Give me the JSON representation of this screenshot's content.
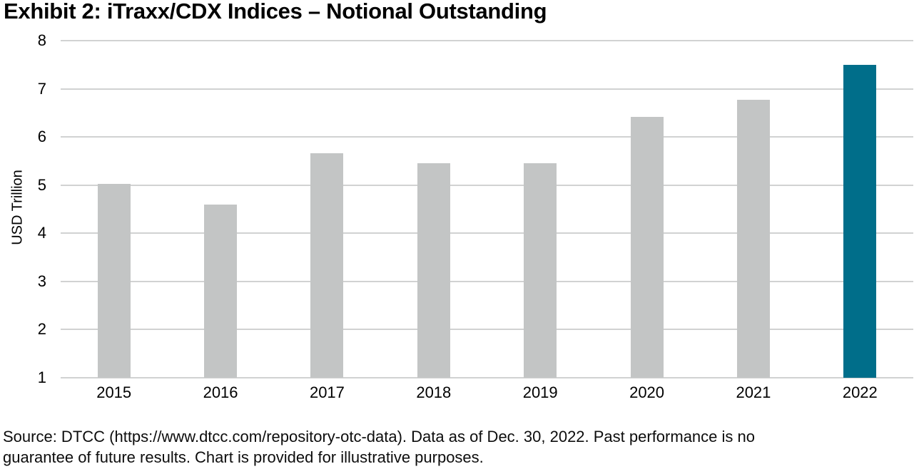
{
  "title": "Exhibit 2: iTraxx/CDX Indices – Notional Outstanding",
  "source_note": {
    "line1": "Source: DTCC (https://www.dtcc.com/repository-otc-data). Data as of Dec. 30, 2022. Past performance is no",
    "line2": "guarantee of future results. Chart is provided for illustrative purposes."
  },
  "colors": {
    "bar_default": "#C3C5C5",
    "bar_highlight": "#006E8A",
    "gridline": "#D1D2D2",
    "text": "#000000"
  },
  "chart_data": {
    "type": "bar",
    "title": "Exhibit 2: iTraxx/CDX Indices – Notional Outstanding",
    "categories": [
      "2015",
      "2016",
      "2017",
      "2018",
      "2019",
      "2020",
      "2021",
      "2022"
    ],
    "values": [
      5.02,
      4.6,
      5.66,
      5.46,
      5.46,
      6.41,
      6.77,
      7.5
    ],
    "highlight_category": "2022",
    "xlabel": "",
    "ylabel": "USD Trillion",
    "ylim": [
      1,
      8
    ],
    "yticks": [
      1,
      2,
      3,
      4,
      5,
      6,
      7,
      8
    ],
    "grid": true,
    "legend": false
  }
}
